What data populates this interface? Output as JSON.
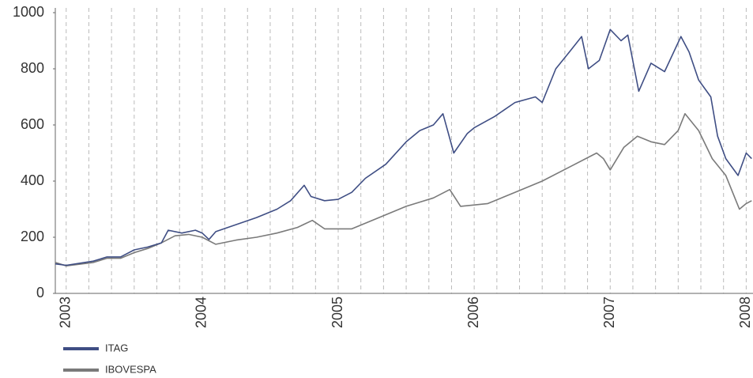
{
  "chart_data": {
    "type": "line",
    "xlim": [
      2002.92,
      2008.05
    ],
    "xticks": [
      2003,
      2004,
      2005,
      2006,
      2007,
      2008
    ],
    "ylim": [
      0,
      1000
    ],
    "yticks": [
      0,
      200,
      400,
      600,
      800,
      1000
    ],
    "grid": "x-dashed",
    "legend": "bottom-left",
    "series": [
      {
        "name": "ITAG",
        "color": "#3f4e84",
        "x": [
          2002.92,
          2003.0,
          2003.2,
          2003.3,
          2003.4,
          2003.5,
          2003.6,
          2003.7,
          2003.75,
          2003.85,
          2003.95,
          2004.0,
          2004.05,
          2004.1,
          2004.25,
          2004.4,
          2004.55,
          2004.65,
          2004.75,
          2004.8,
          2004.9,
          2005.0,
          2005.1,
          2005.2,
          2005.35,
          2005.5,
          2005.6,
          2005.7,
          2005.77,
          2005.85,
          2005.95,
          2006.0,
          2006.15,
          2006.3,
          2006.45,
          2006.5,
          2006.6,
          2006.7,
          2006.79,
          2006.84,
          2006.92,
          2007.0,
          2007.08,
          2007.13,
          2007.21,
          2007.3,
          2007.4,
          2007.52,
          2007.58,
          2007.65,
          2007.74,
          2007.79,
          2007.85,
          2007.94,
          2008.0,
          2008.04
        ],
        "values": [
          105,
          100,
          115,
          130,
          130,
          155,
          165,
          180,
          225,
          215,
          225,
          215,
          192,
          220,
          245,
          270,
          300,
          330,
          385,
          345,
          330,
          335,
          360,
          410,
          460,
          540,
          580,
          600,
          640,
          500,
          570,
          590,
          630,
          680,
          700,
          680,
          800,
          860,
          915,
          800,
          830,
          940,
          900,
          920,
          720,
          820,
          790,
          915,
          860,
          760,
          700,
          560,
          480,
          420,
          500,
          480
        ]
      },
      {
        "name": "IBOVESPA",
        "color": "#7a7a7a",
        "x": [
          2002.92,
          2003.0,
          2003.2,
          2003.3,
          2003.4,
          2003.5,
          2003.6,
          2003.7,
          2003.8,
          2003.9,
          2004.0,
          2004.1,
          2004.25,
          2004.4,
          2004.55,
          2004.7,
          2004.81,
          2004.9,
          2005.1,
          2005.3,
          2005.5,
          2005.7,
          2005.82,
          2005.9,
          2006.1,
          2006.3,
          2006.5,
          2006.7,
          2006.9,
          2006.95,
          2007.0,
          2007.1,
          2007.2,
          2007.3,
          2007.4,
          2007.5,
          2007.55,
          2007.65,
          2007.75,
          2007.85,
          2007.95,
          2008.0,
          2008.04
        ],
        "values": [
          110,
          98,
          110,
          125,
          125,
          145,
          160,
          180,
          205,
          210,
          200,
          175,
          190,
          200,
          215,
          235,
          260,
          230,
          230,
          270,
          310,
          340,
          370,
          310,
          320,
          360,
          400,
          450,
          500,
          480,
          440,
          520,
          560,
          540,
          530,
          580,
          640,
          580,
          480,
          420,
          300,
          320,
          330
        ]
      }
    ]
  }
}
